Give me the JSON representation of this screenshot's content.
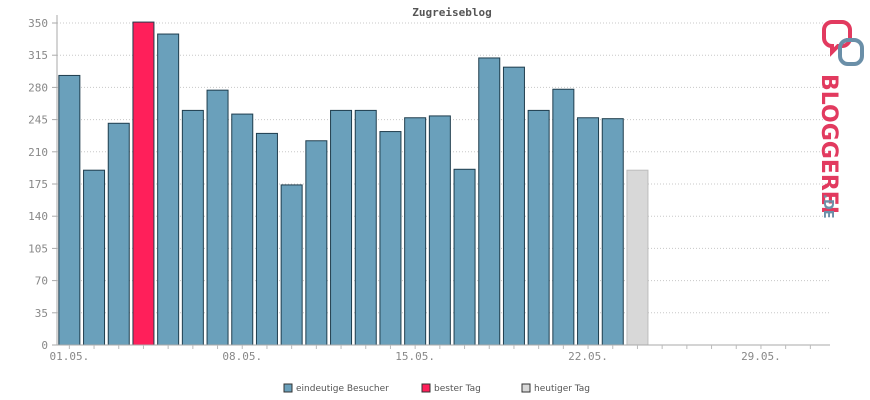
{
  "chart_data": {
    "type": "bar",
    "title": "Zugreiseblog",
    "xlabel": "",
    "ylabel": "",
    "ylim": [
      0,
      350
    ],
    "yticks": [
      0,
      35,
      70,
      105,
      140,
      175,
      210,
      245,
      280,
      315,
      350
    ],
    "grid": true,
    "legend_position": "bottom",
    "days": 31,
    "x_tick_labels": [
      {
        "day": 1,
        "label": "01.05."
      },
      {
        "day": 8,
        "label": "08.05."
      },
      {
        "day": 15,
        "label": "15.05."
      },
      {
        "day": 22,
        "label": "22.05."
      },
      {
        "day": 29,
        "label": "29.05."
      }
    ],
    "series": [
      {
        "name": "eindeutige Besucher",
        "color": "#6aa0bb",
        "values": [
          {
            "day": 1,
            "value": 293
          },
          {
            "day": 2,
            "value": 190
          },
          {
            "day": 3,
            "value": 241
          },
          {
            "day": 5,
            "value": 338
          },
          {
            "day": 6,
            "value": 255
          },
          {
            "day": 7,
            "value": 277
          },
          {
            "day": 8,
            "value": 251
          },
          {
            "day": 9,
            "value": 230
          },
          {
            "day": 10,
            "value": 174
          },
          {
            "day": 11,
            "value": 222
          },
          {
            "day": 12,
            "value": 255
          },
          {
            "day": 13,
            "value": 255
          },
          {
            "day": 14,
            "value": 232
          },
          {
            "day": 15,
            "value": 247
          },
          {
            "day": 16,
            "value": 249
          },
          {
            "day": 17,
            "value": 191
          },
          {
            "day": 18,
            "value": 312
          },
          {
            "day": 19,
            "value": 302
          },
          {
            "day": 20,
            "value": 255
          },
          {
            "day": 21,
            "value": 278
          },
          {
            "day": 22,
            "value": 247
          },
          {
            "day": 23,
            "value": 246
          }
        ]
      },
      {
        "name": "bester Tag",
        "color": "#ff1f5a",
        "values": [
          {
            "day": 4,
            "value": 351
          }
        ]
      },
      {
        "name": "heutiger Tag",
        "color": "#d8d8d8",
        "values": [
          {
            "day": 24,
            "value": 190
          }
        ]
      }
    ]
  },
  "legend": [
    {
      "label": "eindeutige Besucher",
      "color": "#6aa0bb"
    },
    {
      "label": "bester Tag",
      "color": "#ff1f5a"
    },
    {
      "label": "heutiger Tag",
      "color": "#d8d8d8"
    }
  ],
  "logo": {
    "text": "BLOGGEREI",
    "suffix": ".DE",
    "icon": "bloggerei-logo-icon"
  }
}
